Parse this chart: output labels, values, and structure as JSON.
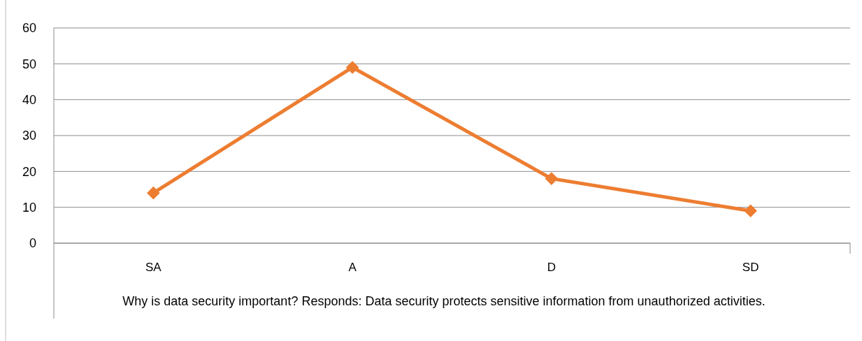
{
  "chart_data": {
    "type": "line",
    "xlabel": "Why is data security important? Responds: Data security protects sensitive information from unauthorized activities.",
    "categories": [
      "SA",
      "A",
      "D",
      "SD"
    ],
    "series": [
      {
        "color": "#ed7d31",
        "values": [
          14,
          49,
          18,
          9
        ]
      }
    ],
    "ylim": [
      0,
      60
    ],
    "yticks": [
      0,
      10,
      20,
      30,
      40,
      50,
      60
    ],
    "grid": "y",
    "marker": "diamond",
    "line_style": "solid"
  }
}
